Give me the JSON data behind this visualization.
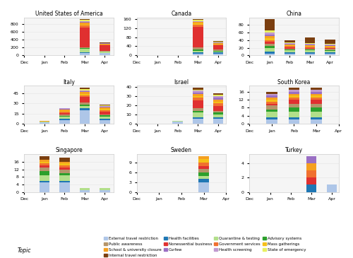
{
  "countries": [
    "United States of America",
    "Canada",
    "China",
    "Italy",
    "Israel",
    "South Korea",
    "Singapore",
    "Sweden",
    "Turkey"
  ],
  "months": [
    "Dec",
    "Jan",
    "Feb",
    "Mar",
    "Apr"
  ],
  "month_indices": [
    0,
    1,
    2,
    3,
    4
  ],
  "topics": [
    "External travel restriction",
    "Health facilities",
    "Quarantine & testing",
    "Advisory systems",
    "Public awareness",
    "Nonessential business",
    "Government services",
    "Mass gatherings",
    "School & university closure",
    "Curfew",
    "Health screening",
    "State of emergency",
    "Internal travel restriction"
  ],
  "colors": [
    "#aec6e8",
    "#1f77b4",
    "#b2df8a",
    "#2ca02c",
    "#c9a96e",
    "#e03b3b",
    "#f07f3a",
    "#f5c842",
    "#f5a623",
    "#9467bd",
    "#b895c9",
    "#e8f57a",
    "#8B4513"
  ],
  "data": {
    "United States of America": {
      "Dec": [
        0,
        0,
        0,
        0,
        0,
        0,
        0,
        0,
        0,
        0,
        0,
        0,
        0
      ],
      "Jan": [
        1,
        0,
        0,
        0,
        0,
        0,
        0,
        0,
        0,
        0,
        0,
        0,
        0
      ],
      "Feb": [
        2,
        0,
        1,
        0,
        0,
        0,
        0,
        0,
        0,
        0,
        0,
        0,
        0
      ],
      "Mar": [
        50,
        30,
        100,
        10,
        30,
        500,
        50,
        30,
        50,
        20,
        10,
        50,
        10
      ],
      "Apr": [
        50,
        10,
        30,
        5,
        10,
        150,
        20,
        10,
        10,
        5,
        5,
        10,
        5
      ]
    },
    "Canada": {
      "Dec": [
        0,
        0,
        0,
        0,
        0,
        0,
        0,
        0,
        0,
        0,
        0,
        0,
        0
      ],
      "Jan": [
        0,
        0,
        0,
        0,
        0,
        0,
        0,
        0,
        0,
        0,
        0,
        0,
        0
      ],
      "Feb": [
        0,
        0,
        0,
        0,
        0,
        0,
        0,
        0,
        0,
        0,
        0,
        0,
        0
      ],
      "Mar": [
        10,
        5,
        5,
        5,
        10,
        100,
        10,
        5,
        5,
        2,
        3,
        5,
        3
      ],
      "Apr": [
        10,
        5,
        5,
        3,
        5,
        25,
        5,
        3,
        3,
        2,
        2,
        3,
        2
      ]
    },
    "China": {
      "Dec": [
        0,
        0,
        0,
        0,
        0,
        0,
        0,
        0,
        0,
        0,
        0,
        0,
        0
      ],
      "Jan": [
        20,
        5,
        15,
        5,
        5,
        5,
        5,
        5,
        5,
        5,
        5,
        5,
        30
      ],
      "Feb": [
        5,
        2,
        5,
        2,
        3,
        3,
        3,
        2,
        2,
        2,
        2,
        2,
        5
      ],
      "Mar": [
        5,
        2,
        5,
        2,
        3,
        3,
        3,
        2,
        2,
        2,
        2,
        2,
        20
      ],
      "Apr": [
        5,
        2,
        5,
        2,
        3,
        3,
        3,
        2,
        2,
        2,
        2,
        2,
        10
      ]
    },
    "Italy": {
      "Dec": [
        0,
        0,
        0,
        0,
        0,
        0,
        0,
        0,
        0,
        0,
        0,
        0,
        0
      ],
      "Jan": [
        2,
        0,
        1,
        0,
        0,
        0,
        0,
        0,
        1,
        0,
        0,
        0,
        0
      ],
      "Feb": [
        5,
        2,
        3,
        1,
        2,
        3,
        2,
        1,
        2,
        1,
        1,
        0,
        0
      ],
      "Mar": [
        20,
        3,
        3,
        3,
        3,
        10,
        3,
        3,
        3,
        1,
        1,
        3,
        3
      ],
      "Apr": [
        5,
        3,
        3,
        2,
        2,
        5,
        2,
        2,
        2,
        1,
        1,
        2,
        2
      ]
    },
    "Israel": {
      "Dec": [
        0,
        0,
        0,
        0,
        0,
        0,
        0,
        0,
        0,
        0,
        0,
        0,
        0
      ],
      "Jan": [
        0,
        0,
        0,
        0,
        0,
        0,
        0,
        0,
        0,
        0,
        0,
        0,
        0
      ],
      "Feb": [
        2,
        0,
        1,
        0,
        0,
        0,
        0,
        0,
        0,
        0,
        0,
        0,
        0
      ],
      "Mar": [
        5,
        3,
        5,
        2,
        3,
        8,
        3,
        2,
        2,
        2,
        2,
        2,
        2
      ],
      "Apr": [
        5,
        2,
        3,
        2,
        2,
        5,
        3,
        2,
        2,
        2,
        2,
        2,
        2
      ]
    },
    "South Korea": {
      "Dec": [
        0,
        0,
        0,
        0,
        0,
        0,
        0,
        0,
        0,
        0,
        0,
        0,
        0
      ],
      "Jan": [
        2,
        1,
        3,
        1,
        2,
        1,
        1,
        1,
        1,
        1,
        1,
        0,
        1
      ],
      "Feb": [
        2,
        1,
        3,
        2,
        2,
        2,
        1,
        1,
        1,
        1,
        1,
        0,
        1
      ],
      "Mar": [
        2,
        1,
        3,
        2,
        2,
        2,
        1,
        1,
        1,
        1,
        1,
        0,
        1
      ],
      "Apr": [
        0,
        0,
        0,
        0,
        0,
        0,
        0,
        0,
        0,
        0,
        0,
        0,
        0
      ]
    },
    "Singapore": {
      "Dec": [
        0,
        0,
        0,
        0,
        0,
        0,
        0,
        0,
        0,
        0,
        0,
        0,
        0
      ],
      "Jan": [
        5,
        1,
        3,
        2,
        2,
        1,
        1,
        1,
        1,
        0,
        0,
        0,
        2
      ],
      "Feb": [
        5,
        1,
        3,
        1,
        2,
        1,
        1,
        1,
        1,
        0,
        0,
        0,
        2
      ],
      "Mar": [
        1,
        0,
        1,
        0,
        0,
        0,
        0,
        0,
        0,
        0,
        0,
        0,
        0
      ],
      "Apr": [
        1,
        0,
        1,
        0,
        0,
        0,
        0,
        0,
        0,
        0,
        0,
        0,
        0
      ]
    },
    "Sweden": {
      "Dec": [
        0,
        0,
        0,
        0,
        0,
        0,
        0,
        0,
        0,
        0,
        0,
        0,
        0
      ],
      "Jan": [
        0,
        0,
        0,
        0,
        0,
        0,
        0,
        0,
        0,
        0,
        0,
        0,
        0
      ],
      "Feb": [
        0,
        0,
        0,
        0,
        0,
        0,
        0,
        0,
        0,
        0,
        0,
        0,
        0
      ],
      "Mar": [
        3,
        1,
        1,
        1,
        1,
        2,
        1,
        1,
        1,
        0,
        0,
        0,
        0
      ],
      "Apr": [
        0,
        0,
        0,
        0,
        0,
        0,
        0,
        0,
        0,
        0,
        0,
        0,
        0
      ]
    },
    "Turkey": {
      "Dec": [
        0,
        0,
        0,
        0,
        0,
        0,
        0,
        0,
        0,
        0,
        0,
        0,
        0
      ],
      "Jan": [
        0,
        0,
        0,
        0,
        0,
        0,
        0,
        0,
        0,
        0,
        0,
        0,
        0
      ],
      "Feb": [
        0,
        0,
        0,
        0,
        0,
        0,
        0,
        0,
        0,
        0,
        0,
        0,
        0
      ],
      "Mar": [
        0,
        1,
        0,
        0,
        0,
        1,
        1,
        0,
        1,
        1,
        0,
        0,
        0
      ],
      "Apr": [
        1,
        0,
        0,
        0,
        0,
        0,
        0,
        0,
        0,
        0,
        0,
        0,
        0
      ]
    }
  }
}
